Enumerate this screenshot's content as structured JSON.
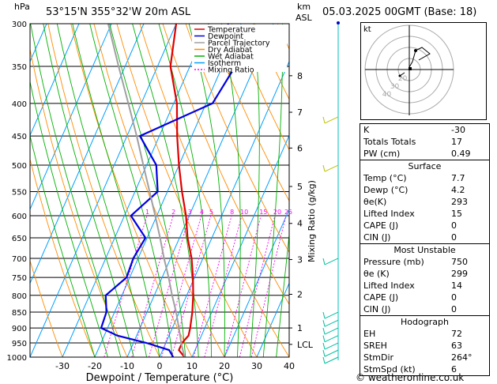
{
  "header": {
    "hpa_label": "hPa",
    "location": "53°15'N 355°32'W 20m ASL",
    "km_label": "km",
    "asl_label": "ASL",
    "datetime": "05.03.2025 00GMT (Base: 18)"
  },
  "chart_data": {
    "type": "line",
    "xlabel": "Dewpoint / Temperature (°C)",
    "ylabel": "hPa",
    "right_label": "Mixing Ratio (g/kg)",
    "xlim": [
      -40,
      40
    ],
    "ylim": [
      1000,
      300
    ],
    "x_ticks": [
      -30,
      -20,
      -10,
      0,
      10,
      20,
      30,
      40
    ],
    "pressure_levels": [
      300,
      350,
      400,
      450,
      500,
      550,
      600,
      650,
      700,
      750,
      800,
      850,
      900,
      950,
      1000
    ],
    "height_ticks": [
      {
        "label": "8",
        "p": 362
      },
      {
        "label": "7",
        "p": 413
      },
      {
        "label": "6",
        "p": 470
      },
      {
        "label": "5",
        "p": 540
      },
      {
        "label": "4",
        "p": 617
      },
      {
        "label": "3",
        "p": 703
      },
      {
        "label": "2",
        "p": 797
      },
      {
        "label": "1",
        "p": 900
      },
      {
        "label": "LCL",
        "p": 955
      }
    ],
    "mixing_ratio_labels": [
      "1",
      "2",
      "3",
      "4",
      "5",
      "8",
      "10",
      "15",
      "20",
      "25"
    ],
    "legend": [
      {
        "name": "Temperature",
        "color": "#e00000"
      },
      {
        "name": "Dewpoint",
        "color": "#0000e0"
      },
      {
        "name": "Parcel Trajectory",
        "color": "#a0a0a0"
      },
      {
        "name": "Dry Adiabat",
        "color": "#ff8c00"
      },
      {
        "name": "Wet Adiabat",
        "color": "#00b000"
      },
      {
        "name": "Isotherm",
        "color": "#00a0ff"
      },
      {
        "name": "Mixing Ratio",
        "color": "#ff00ff"
      }
    ],
    "series": [
      {
        "name": "Temperature",
        "color": "#e00000",
        "points": [
          [
            1000,
            7.7
          ],
          [
            975,
            5
          ],
          [
            950,
            5
          ],
          [
            925,
            6
          ],
          [
            900,
            5.5
          ],
          [
            850,
            4
          ],
          [
            800,
            2
          ],
          [
            750,
            -0.5
          ],
          [
            700,
            -3.5
          ],
          [
            650,
            -7.5
          ],
          [
            600,
            -11
          ],
          [
            550,
            -15.5
          ],
          [
            500,
            -20
          ],
          [
            450,
            -24.5
          ],
          [
            400,
            -29
          ],
          [
            350,
            -36
          ],
          [
            300,
            -40
          ]
        ]
      },
      {
        "name": "Dewpoint",
        "color": "#0000e0",
        "points": [
          [
            1000,
            4.2
          ],
          [
            975,
            2
          ],
          [
            950,
            -6
          ],
          [
            925,
            -16
          ],
          [
            900,
            -22
          ],
          [
            850,
            -22.5
          ],
          [
            800,
            -25
          ],
          [
            750,
            -21
          ],
          [
            700,
            -21.5
          ],
          [
            650,
            -20.5
          ],
          [
            600,
            -28
          ],
          [
            550,
            -23
          ],
          [
            500,
            -27
          ],
          [
            450,
            -36
          ],
          [
            400,
            -18
          ],
          [
            350,
            -16
          ],
          [
            300,
            -24
          ]
        ]
      },
      {
        "name": "Parcel Trajectory",
        "color": "#a0a0a0",
        "points": [
          [
            1000,
            7.7
          ],
          [
            955,
            5
          ],
          [
            900,
            2
          ],
          [
            850,
            -1
          ],
          [
            800,
            -4.5
          ],
          [
            750,
            -8
          ],
          [
            700,
            -12
          ],
          [
            650,
            -16
          ],
          [
            600,
            -20.5
          ],
          [
            550,
            -25.5
          ],
          [
            500,
            -31
          ],
          [
            450,
            -37
          ],
          [
            400,
            -44
          ],
          [
            350,
            -52
          ],
          [
            300,
            -61
          ]
        ]
      }
    ]
  },
  "hodograph": {
    "label": "kt",
    "ring_labels": [
      "40",
      "30",
      "20"
    ]
  },
  "indices": {
    "k_label": "K",
    "k": "-30",
    "tt_label": "Totals Totals",
    "tt": "17",
    "pw_label": "PW (cm)",
    "pw": "0.49",
    "surface_title": "Surface",
    "temp_label": "Temp (°C)",
    "temp": "7.7",
    "dewp_label": "Dewp (°C)",
    "dewp": "4.2",
    "thetae_label": "θe(K)",
    "thetae": "293",
    "li_label": "Lifted Index",
    "li": "15",
    "cape_label": "CAPE (J)",
    "cape": "0",
    "cin_label": "CIN (J)",
    "cin": "0",
    "mu_title": "Most Unstable",
    "mu_pres_label": "Pressure (mb)",
    "mu_pres": "750",
    "mu_thetae_label": "θe (K)",
    "mu_thetae": "299",
    "mu_li_label": "Lifted Index",
    "mu_li": "14",
    "mu_cape_label": "CAPE (J)",
    "mu_cape": "0",
    "mu_cin_label": "CIN (J)",
    "mu_cin": "0",
    "hodo_title": "Hodograph",
    "eh_label": "EH",
    "eh": "72",
    "sreh_label": "SREH",
    "sreh": "63",
    "stmdir_label": "StmDir",
    "stmdir": "264°",
    "stmspd_label": "StmSpd (kt)",
    "stmspd": "6"
  },
  "footer": {
    "copyright": "© weatheronline.co.uk"
  }
}
